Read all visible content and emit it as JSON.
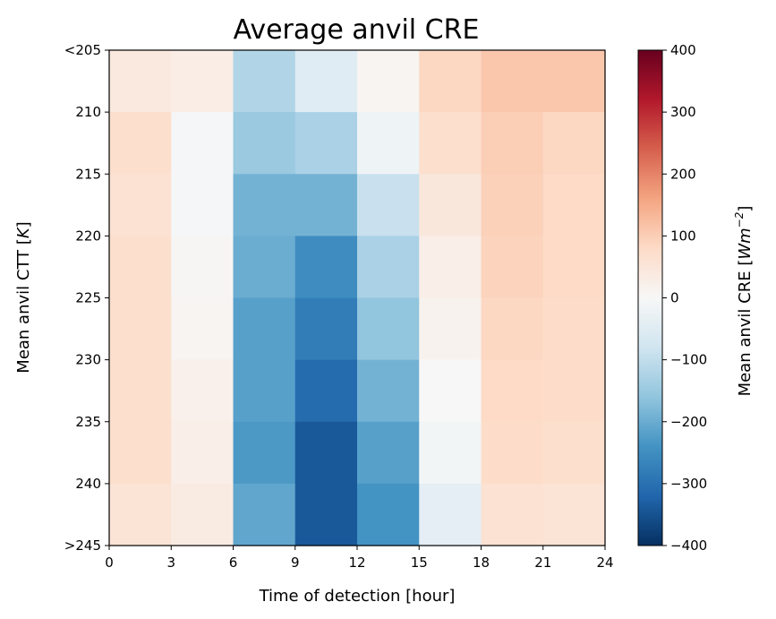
{
  "chart_data": {
    "type": "heatmap",
    "title": "Average anvil CRE",
    "xlabel": "Time of detection [hour]",
    "ylabel_main": "Mean anvil CTT [",
    "ylabel_unit": "K",
    "ylabel_end": "]",
    "x_tick_labels": [
      "0",
      "3",
      "6",
      "9",
      "12",
      "15",
      "18",
      "21",
      "24"
    ],
    "y_tick_labels": [
      "<205",
      "210",
      "215",
      "220",
      "225",
      "230",
      "235",
      "240",
      ">245"
    ],
    "colorbar": {
      "label_main": "Mean anvil CRE [",
      "label_unit": "Wm",
      "label_exp": "−2",
      "label_end": "]",
      "range": [
        -400,
        400
      ],
      "tick_labels": [
        "400",
        "300",
        "200",
        "100",
        "0",
        "−100",
        "−200",
        "−300",
        "−400"
      ],
      "tick_values": [
        400,
        300,
        200,
        100,
        0,
        -100,
        -200,
        -300,
        -400
      ],
      "colormap": "RdBu_r"
    },
    "x_bins": [
      "0-3",
      "3-6",
      "6-9",
      "9-12",
      "12-15",
      "15-18",
      "18-21",
      "21-24"
    ],
    "y_bins": [
      "<205-210",
      "210-215",
      "215-220",
      "220-225",
      "225-230",
      "230-235",
      "235-240",
      "240->245"
    ],
    "values": [
      [
        40,
        30,
        -120,
        -50,
        10,
        85,
        110,
        110
      ],
      [
        70,
        -5,
        -150,
        -130,
        -20,
        70,
        100,
        85
      ],
      [
        60,
        -5,
        -190,
        -190,
        -90,
        45,
        95,
        80
      ],
      [
        70,
        5,
        -200,
        -250,
        -130,
        25,
        90,
        80
      ],
      [
        70,
        10,
        -220,
        -280,
        -160,
        15,
        85,
        75
      ],
      [
        70,
        20,
        -220,
        -310,
        -190,
        0,
        80,
        75
      ],
      [
        70,
        25,
        -230,
        -340,
        -220,
        -10,
        75,
        70
      ],
      [
        55,
        35,
        -210,
        -340,
        -240,
        -40,
        60,
        55
      ]
    ]
  }
}
